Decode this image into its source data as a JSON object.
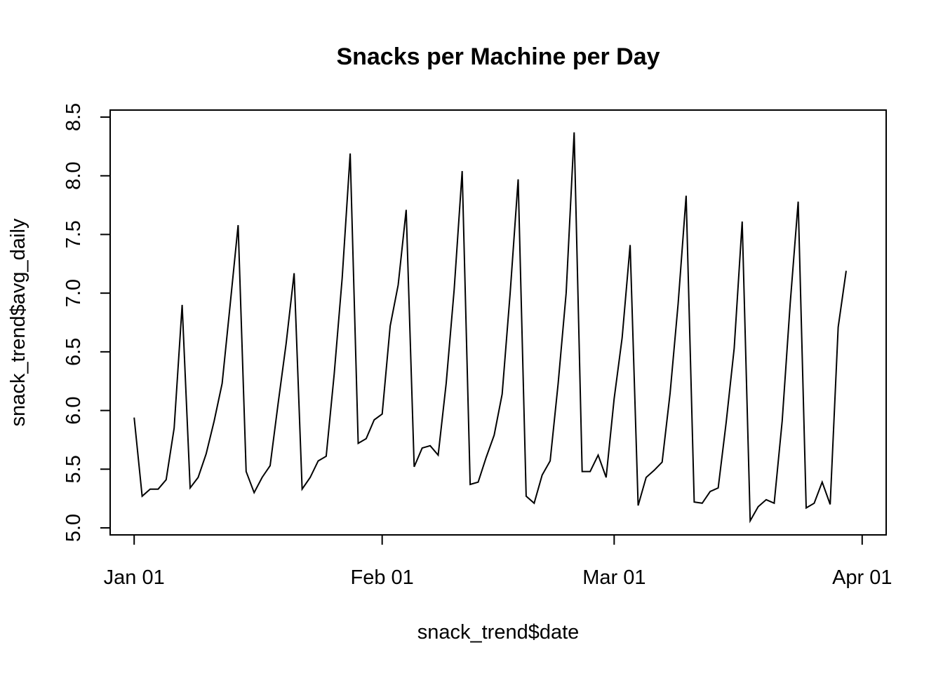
{
  "chart_data": {
    "type": "line",
    "title": "Snacks per Machine per Day",
    "xlabel": "snack_trend$date",
    "ylabel": "snack_trend$avg_daily",
    "x_start": "2024-01-01",
    "x_end": "2024-04-01",
    "xlim": [
      "2023-12-29",
      "2024-04-04"
    ],
    "ylim": [
      4.94,
      8.56
    ],
    "x_ticks": [
      {
        "label": "Jan 01",
        "date": "2024-01-01"
      },
      {
        "label": "Feb 01",
        "date": "2024-02-01"
      },
      {
        "label": "Mar 01",
        "date": "2024-03-01"
      },
      {
        "label": "Apr 01",
        "date": "2024-04-01"
      }
    ],
    "y_ticks": [
      {
        "label": "5.0",
        "value": 5.0
      },
      {
        "label": "5.5",
        "value": 5.5
      },
      {
        "label": "6.0",
        "value": 6.0
      },
      {
        "label": "6.5",
        "value": 6.5
      },
      {
        "label": "7.0",
        "value": 7.0
      },
      {
        "label": "7.5",
        "value": 7.5
      },
      {
        "label": "8.0",
        "value": 8.0
      },
      {
        "label": "8.5",
        "value": 8.5
      }
    ],
    "grid": false,
    "legend": "none",
    "line_color": "#000000",
    "series": [
      {
        "values": [
          5.94,
          5.27,
          5.33,
          5.33,
          5.41,
          5.85,
          6.9,
          5.34,
          5.43,
          5.63,
          5.91,
          6.23,
          6.9,
          7.58,
          5.48,
          5.3,
          5.43,
          5.53,
          6.06,
          6.57,
          7.17,
          5.33,
          5.43,
          5.57,
          5.61,
          6.31,
          7.13,
          8.19,
          5.72,
          5.76,
          5.92,
          5.97,
          6.72,
          7.07,
          7.71,
          5.52,
          5.68,
          5.7,
          5.62,
          6.23,
          7.03,
          8.04,
          5.37,
          5.39,
          5.6,
          5.79,
          6.14,
          7.0,
          7.97,
          5.27,
          5.21,
          5.45,
          5.57,
          6.23,
          7.0,
          8.37,
          5.48,
          5.48,
          5.62,
          5.43,
          6.1,
          6.62,
          7.41,
          5.19,
          5.43,
          5.49,
          5.56,
          6.15,
          6.91,
          7.83,
          5.22,
          5.21,
          5.31,
          5.34,
          5.9,
          6.53,
          7.61,
          5.06,
          5.18,
          5.24,
          5.21,
          5.91,
          6.91,
          7.78,
          5.17,
          5.21,
          5.39,
          5.2,
          6.71,
          7.19
        ]
      }
    ]
  }
}
